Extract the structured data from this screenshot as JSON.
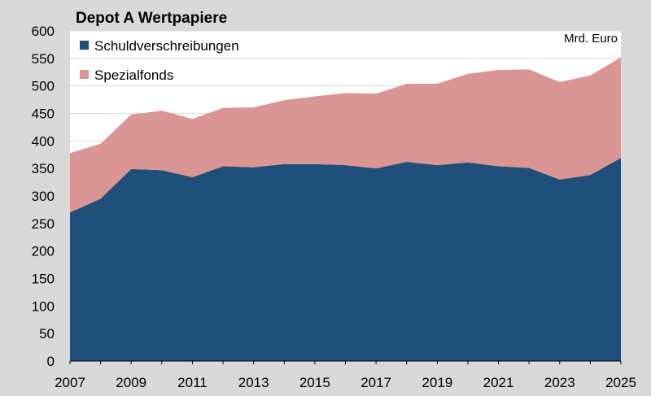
{
  "chart_data": {
    "type": "area",
    "stacked": true,
    "title": "Depot A Wertpapiere",
    "unit_label": "Mrd. Euro",
    "x": [
      2007,
      2008,
      2009,
      2010,
      2011,
      2012,
      2013,
      2014,
      2015,
      2016,
      2017,
      2018,
      2019,
      2020,
      2021,
      2022,
      2023,
      2024,
      2025
    ],
    "x_ticks": [
      "2007",
      "2009",
      "2011",
      "2013",
      "2015",
      "2017",
      "2019",
      "2021",
      "2023",
      "2025"
    ],
    "y_ticks": [
      "0",
      "50",
      "100",
      "150",
      "200",
      "250",
      "300",
      "350",
      "400",
      "450",
      "500",
      "550",
      "600"
    ],
    "ylim": [
      0,
      600
    ],
    "xlim": [
      2007,
      2025
    ],
    "grid": true,
    "legend_position": "top-left",
    "series": [
      {
        "name": "Schuldverschreibungen",
        "color": "#1f4e79",
        "values": [
          270,
          295,
          349,
          347,
          334,
          354,
          352,
          358,
          358,
          356,
          350,
          362,
          356,
          361,
          354,
          351,
          330,
          338,
          369
        ]
      },
      {
        "name": "Spezialfonds",
        "color": "#d99694",
        "values": [
          108,
          100,
          99,
          108,
          106,
          106,
          109,
          116,
          123,
          131,
          136,
          142,
          148,
          161,
          175,
          179,
          177,
          181,
          183
        ]
      }
    ]
  }
}
